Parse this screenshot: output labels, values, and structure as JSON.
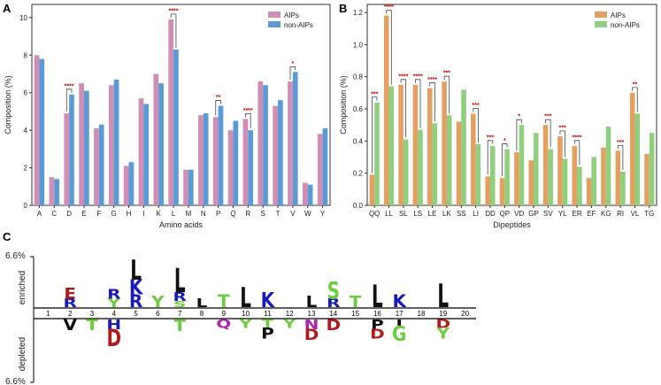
{
  "figure": {
    "colors": {
      "aips_a": "#d08eb4",
      "nonaips_a": "#5b9bd5",
      "aips_b": "#e2a163",
      "nonaips_b": "#8fcf7d",
      "sig": "#c00000",
      "axis": "#333333",
      "logo_red": "#b01a1a",
      "logo_blue": "#1a1ab8",
      "logo_green": "#6dcc3f",
      "logo_black": "#111111",
      "logo_purple": "#b020b0"
    }
  },
  "chart_data": [
    {
      "panel": "A",
      "type": "bar",
      "categories": [
        "A",
        "C",
        "D",
        "E",
        "F",
        "G",
        "H",
        "I",
        "K",
        "L",
        "M",
        "N",
        "P",
        "Q",
        "R",
        "S",
        "T",
        "V",
        "W",
        "Y"
      ],
      "series": [
        {
          "name": "AIPs",
          "values": [
            8.0,
            1.5,
            4.9,
            6.5,
            4.1,
            6.4,
            2.1,
            5.7,
            7.0,
            9.9,
            1.9,
            4.8,
            4.7,
            4.0,
            4.6,
            6.6,
            5.3,
            6.6,
            1.2,
            3.8
          ]
        },
        {
          "name": "non-AIPs",
          "values": [
            7.8,
            1.4,
            5.9,
            6.1,
            4.3,
            6.7,
            2.3,
            5.4,
            6.5,
            8.3,
            1.9,
            4.9,
            5.3,
            4.5,
            4.0,
            6.4,
            5.6,
            7.1,
            1.1,
            4.1
          ]
        }
      ],
      "significance": [
        {
          "category": "D",
          "label": "****"
        },
        {
          "category": "L",
          "label": "****"
        },
        {
          "category": "P",
          "label": "**"
        },
        {
          "category": "R",
          "label": "****"
        },
        {
          "category": "V",
          "label": "*"
        }
      ],
      "xlabel": "Amino acids",
      "ylabel": "Composition (%)",
      "ylim": [
        0,
        10.7
      ],
      "yticks": [
        0,
        2,
        4,
        6,
        8,
        10
      ],
      "legend": [
        "AIPs",
        "non-AIPs"
      ],
      "legend_position": "top-right"
    },
    {
      "panel": "B",
      "type": "bar",
      "categories": [
        "QQ",
        "LL",
        "SL",
        "LS",
        "LE",
        "LK",
        "SS",
        "LI",
        "DD",
        "QP",
        "VD",
        "GP",
        "SV",
        "YL",
        "ER",
        "EF",
        "KG",
        "RI",
        "VL",
        "TG"
      ],
      "series": [
        {
          "name": "AIPs",
          "values": [
            0.19,
            1.18,
            0.75,
            0.75,
            0.73,
            0.77,
            0.52,
            0.57,
            0.18,
            0.17,
            0.33,
            0.28,
            0.5,
            0.43,
            0.37,
            0.17,
            0.36,
            0.34,
            0.7,
            0.32
          ]
        },
        {
          "name": "non-AIPs",
          "values": [
            0.64,
            0.74,
            0.41,
            0.47,
            0.51,
            0.56,
            0.72,
            0.38,
            0.37,
            0.35,
            0.5,
            0.45,
            0.35,
            0.29,
            0.24,
            0.3,
            0.49,
            0.21,
            0.57,
            0.45
          ]
        }
      ],
      "significance": [
        {
          "category": "QQ",
          "label": "***"
        },
        {
          "category": "LL",
          "label": "****"
        },
        {
          "category": "SL",
          "label": "****"
        },
        {
          "category": "LS",
          "label": "****"
        },
        {
          "category": "LE",
          "label": "****"
        },
        {
          "category": "LK",
          "label": "***"
        },
        {
          "category": "LI",
          "label": "***"
        },
        {
          "category": "DD",
          "label": "***"
        },
        {
          "category": "QP",
          "label": "*"
        },
        {
          "category": "VD",
          "label": "*"
        },
        {
          "category": "SV",
          "label": "***"
        },
        {
          "category": "YL",
          "label": "***"
        },
        {
          "category": "ER",
          "label": "****"
        },
        {
          "category": "RI",
          "label": "***"
        },
        {
          "category": "VL",
          "label": "**"
        }
      ],
      "xlabel": "Dipeptides",
      "ylabel": "Composition (%)",
      "ylim": [
        0,
        1.25
      ],
      "yticks": [
        0.0,
        0.2,
        0.4,
        0.6,
        0.8,
        1.0,
        1.2
      ],
      "legend": [
        "AIPs",
        "non-AIPs"
      ],
      "legend_position": "top-right"
    },
    {
      "panel": "C",
      "type": "sequence-logo",
      "positions": [
        "1",
        "2",
        "3",
        "4",
        "5",
        "6",
        "7",
        "8",
        "9",
        "10",
        "11",
        "12",
        "13",
        "14",
        "15",
        "16",
        "17",
        "18",
        "19",
        "20"
      ],
      "ylabel_top": "enriched",
      "ylabel_bottom": "depleted",
      "ymax_label_top": "6.6%",
      "ymax_label_bottom": "6.6%",
      "enriched": [
        {
          "position": 2,
          "stack": [
            {
              "letter": "E",
              "color": "logo_red",
              "height": 1.0
            },
            {
              "letter": "R",
              "color": "logo_blue",
              "height": 0.8
            }
          ]
        },
        {
          "position": 4,
          "stack": [
            {
              "letter": "R",
              "color": "logo_blue",
              "height": 0.9
            },
            {
              "letter": "Y",
              "color": "logo_green",
              "height": 0.8
            }
          ]
        },
        {
          "position": 5,
          "stack": [
            {
              "letter": "L",
              "color": "logo_black",
              "height": 1.9
            },
            {
              "letter": "K",
              "color": "logo_blue",
              "height": 1.4
            },
            {
              "letter": "R",
              "color": "logo_blue",
              "height": 1.2
            }
          ]
        },
        {
          "position": 6,
          "stack": [
            {
              "letter": "Y",
              "color": "logo_green",
              "height": 1.1
            }
          ]
        },
        {
          "position": 7,
          "stack": [
            {
              "letter": "L",
              "color": "logo_black",
              "height": 2.3
            },
            {
              "letter": "R",
              "color": "logo_blue",
              "height": 0.8
            },
            {
              "letter": "S",
              "color": "logo_green",
              "height": 0.6
            }
          ]
        },
        {
          "position": 8,
          "stack": [
            {
              "letter": "L",
              "color": "logo_black",
              "height": 0.8
            }
          ]
        },
        {
          "position": 9,
          "stack": [
            {
              "letter": "T",
              "color": "logo_green",
              "height": 1.2
            }
          ]
        },
        {
          "position": 10,
          "stack": [
            {
              "letter": "L",
              "color": "logo_black",
              "height": 1.9
            }
          ]
        },
        {
          "position": 11,
          "stack": [
            {
              "letter": "K",
              "color": "logo_blue",
              "height": 1.4
            }
          ]
        },
        {
          "position": 13,
          "stack": [
            {
              "letter": "L",
              "color": "logo_black",
              "height": 1.1
            }
          ]
        },
        {
          "position": 14,
          "stack": [
            {
              "letter": "S",
              "color": "logo_green",
              "height": 1.6
            },
            {
              "letter": "R",
              "color": "logo_blue",
              "height": 0.8
            }
          ]
        },
        {
          "position": 15,
          "stack": [
            {
              "letter": "T",
              "color": "logo_green",
              "height": 1.1
            }
          ]
        },
        {
          "position": 16,
          "stack": [
            {
              "letter": "L",
              "color": "logo_black",
              "height": 2.1
            }
          ]
        },
        {
          "position": 17,
          "stack": [
            {
              "letter": "K",
              "color": "logo_blue",
              "height": 1.2
            }
          ]
        },
        {
          "position": 19,
          "stack": [
            {
              "letter": "L",
              "color": "logo_black",
              "height": 2.2
            }
          ]
        }
      ],
      "depleted": [
        {
          "position": 2,
          "stack": [
            {
              "letter": "V",
              "color": "logo_black",
              "height": 1.0
            }
          ]
        },
        {
          "position": 3,
          "stack": [
            {
              "letter": "T",
              "color": "logo_green",
              "height": 1.0
            }
          ]
        },
        {
          "position": 4,
          "stack": [
            {
              "letter": "H",
              "color": "logo_blue",
              "height": 0.9
            },
            {
              "letter": "D",
              "color": "logo_red",
              "height": 1.6
            }
          ]
        },
        {
          "position": 7,
          "stack": [
            {
              "letter": "T",
              "color": "logo_green",
              "height": 1.1
            }
          ]
        },
        {
          "position": 9,
          "stack": [
            {
              "letter": "Q",
              "color": "logo_purple",
              "height": 0.8
            }
          ]
        },
        {
          "position": 10,
          "stack": [
            {
              "letter": "Y",
              "color": "logo_green",
              "height": 0.8
            }
          ]
        },
        {
          "position": 11,
          "stack": [
            {
              "letter": "T",
              "color": "logo_green",
              "height": 0.8
            },
            {
              "letter": "P",
              "color": "logo_black",
              "height": 1.0
            }
          ]
        },
        {
          "position": 12,
          "stack": [
            {
              "letter": "Y",
              "color": "logo_green",
              "height": 0.8
            }
          ]
        },
        {
          "position": 13,
          "stack": [
            {
              "letter": "N",
              "color": "logo_purple",
              "height": 0.9
            },
            {
              "letter": "D",
              "color": "logo_red",
              "height": 1.0
            }
          ]
        },
        {
          "position": 14,
          "stack": [
            {
              "letter": "D",
              "color": "logo_red",
              "height": 1.0
            }
          ]
        },
        {
          "position": 16,
          "stack": [
            {
              "letter": "P",
              "color": "logo_black",
              "height": 0.9
            },
            {
              "letter": "D",
              "color": "logo_red",
              "height": 0.9
            }
          ]
        },
        {
          "position": 17,
          "stack": [
            {
              "letter": "I",
              "color": "logo_black",
              "height": 0.6
            },
            {
              "letter": "G",
              "color": "logo_green",
              "height": 1.4
            }
          ]
        },
        {
          "position": 19,
          "stack": [
            {
              "letter": "D",
              "color": "logo_red",
              "height": 0.8
            },
            {
              "letter": "Y",
              "color": "logo_green",
              "height": 1.0
            }
          ]
        }
      ]
    }
  ]
}
